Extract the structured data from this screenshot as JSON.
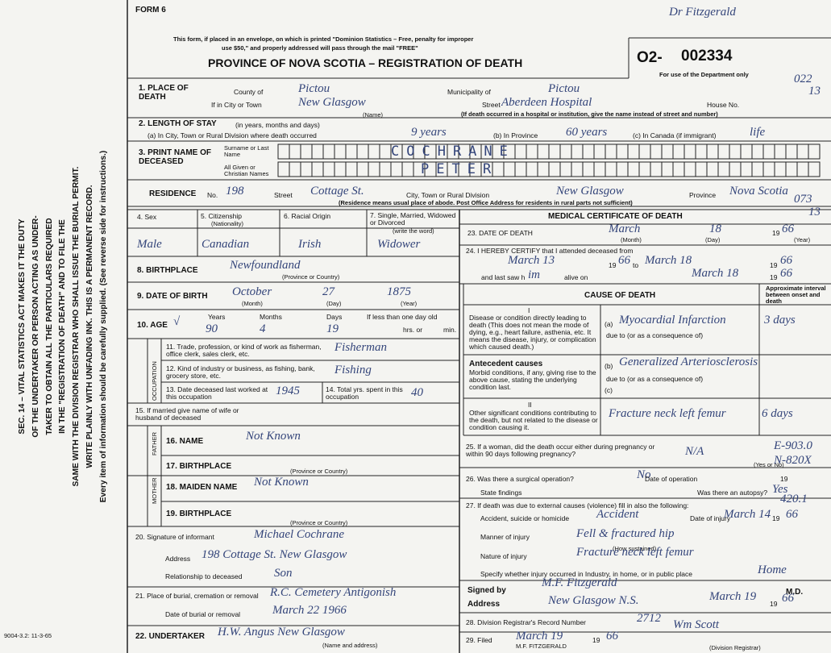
{
  "form_label": "FORM 6",
  "header": {
    "notice": [
      "This form, if placed in an envelope, on which is printed \"Dominion Statistics – Free, penalty for improper",
      "use $50,\" and properly addressed will pass through the mail \"FREE\""
    ],
    "title": "PROVINCE OF NOVA SCOTIA – REGISTRATION OF DEATH",
    "registration_prefix": "O2-",
    "registration_number": "002334",
    "department_use": "For use of the Department only",
    "annotation": "Dr Fitzgerald",
    "codes": [
      "022",
      "13",
      "073",
      "13"
    ]
  },
  "side_note": [
    "SEC. 14 – VITAL STATISTICS ACT MAKES IT THE DUTY",
    "OF THE UNDERTAKER OR PERSON ACTING AS UNDER-",
    "TAKER TO OBTAIN ALL THE PARTICULARS REQUIRED",
    "IN THE \"REGISTRATION OF DEATH\" AND TO FILE THE",
    "SAME WITH THE DIVISION REGISTRAR WHO SHALL ISSUE THE BURIAL PERMIT.",
    "WRITE PLAINLY WITH UNFADING INK. THIS IS A PERMANENT RECORD.",
    "Every item of information should be carefully supplied. (See reverse side for instructions.)"
  ],
  "footer_code": "9004-3.2: 11-3-65",
  "place_of_death": {
    "label": "1. PLACE OF DEATH",
    "county_label": "County of",
    "county": "Pictou",
    "municipality_label": "Municipality of",
    "municipality": "Pictou",
    "city_label": "If in City or Town",
    "city": "New Glasgow",
    "name_caption": "(Name)",
    "street_label": "Street",
    "street": "Aberdeen Hospital",
    "house_label": "House No.",
    "note": "(If death occurred in a hospital or institution, give the name instead of street and number)"
  },
  "length_of_stay": {
    "label": "2. LENGTH OF STAY",
    "label_note": "(in years, months and days)",
    "a_label": "(a) In City, Town or Rural Division where death occurred",
    "a": "9 years",
    "b_label": "(b) In Province",
    "b": "60 years",
    "c_label": "(c) In Canada (if immigrant)",
    "c": "life"
  },
  "name": {
    "label": "3. PRINT NAME OF DECEASED",
    "surname_label": "Surname or Last Name",
    "surname": "COCHRANE",
    "given_label": "All Given or Christian Names",
    "given": "PETER"
  },
  "residence": {
    "label": "RESIDENCE",
    "no_label": "No.",
    "no": "198",
    "street_label": "Street",
    "street": "Cottage St.",
    "city_label": "City, Town or Rural Division",
    "city": "New Glasgow",
    "province_label": "Province",
    "province": "Nova Scotia",
    "note": "(Residence means usual place of abode. Post Office Address for residents in rural parts not sufficient)"
  },
  "personal": {
    "sex_label": "4. Sex",
    "sex": "Male",
    "citizenship_label": "5. Citizenship",
    "citizenship_note": "(Nationality)",
    "citizenship": "Canadian",
    "racial_label": "6. Racial Origin",
    "racial": "Irish",
    "status_label": "7. Single, Married, Widowed or Divorced",
    "status_note": "(write the word)",
    "status": "Widower"
  },
  "birthplace": {
    "label": "8. BIRTHPLACE",
    "value": "Newfoundland",
    "caption": "(Province or Country)"
  },
  "birth_date": {
    "label": "9. DATE OF BIRTH",
    "month": "October",
    "day": "27",
    "year": "1875",
    "month_caption": "(Month)",
    "day_caption": "(Day)",
    "year_caption": "(Year)"
  },
  "age": {
    "label": "10. AGE",
    "check": "√",
    "years_label": "Years",
    "years": "90",
    "months_label": "Months",
    "months": "4",
    "days_label": "Days",
    "days": "19",
    "infant_label": "If less than one day old",
    "hrs_label": "hrs. or",
    "min_label": "min."
  },
  "occupation": {
    "section_label": "OCCUPATION",
    "trade_label": "11. Trade, profession, or kind of work as fisherman, office clerk, sales clerk, etc.",
    "trade": "Fisherman",
    "industry_label": "12. Kind of industry or business, as fishing, bank, grocery store, etc.",
    "industry": "Fishing",
    "last_worked_label": "13. Date deceased last worked at this occupation",
    "last_worked": "1945",
    "total_years_label": "14. Total yrs. spent in this occupation",
    "total_years": "40"
  },
  "spouse": {
    "label": "15. If married give name of wife or husband of deceased"
  },
  "father": {
    "section_label": "FATHER",
    "name_label": "16. NAME",
    "name": "Not Known",
    "birthplace_label": "17. BIRTHPLACE",
    "birthplace_caption": "(Province or Country)"
  },
  "mother": {
    "section_label": "MOTHER",
    "maiden_label": "18. MAIDEN NAME",
    "maiden": "Not Known",
    "birthplace_label": "19. BIRTHPLACE",
    "birthplace_caption": "(Province or Country)"
  },
  "informant": {
    "signature_label": "20. Signature of informant",
    "signature": "Michael Cochrane",
    "address_label": "Address",
    "address": "198 Cottage St. New Glasgow",
    "relationship_label": "Relationship to deceased",
    "relationship": "Son"
  },
  "burial": {
    "place_label": "21. Place of burial, cremation or removal",
    "place": "R.C. Cemetery Antigonish",
    "date_label": "Date of burial or removal",
    "date": "March 22 1966"
  },
  "undertaker": {
    "label": "22. UNDERTAKER",
    "value": "H.W. Angus New Glasgow",
    "caption": "(Name and address)"
  },
  "medical": {
    "title": "MEDICAL CERTIFICATE OF DEATH",
    "death_date_label": "23. DATE OF DEATH",
    "death_month": "March",
    "death_day": "18",
    "century": "19",
    "death_year": "66",
    "month_caption": "(Month)",
    "day_caption": "(Day)",
    "year_caption": "(Year)",
    "certify_label": "24. I HEREBY CERTIFY that I attended deceased from",
    "from": "March 13",
    "from_year": "66",
    "to_label": "to",
    "to": "March 18",
    "to_year": "66",
    "last_seen_label": "and last saw h",
    "last_seen_suffix": "im",
    "alive_label": "alive on",
    "last_seen": "March 18",
    "last_seen_year": "66"
  },
  "cause": {
    "title": "CAUSE OF DEATH",
    "interval_label": "Approximate interval between onset and death",
    "part1": "I",
    "direct_label": "Disease or condition directly leading to death (This does not mean the mode of dying, e.g., heart failure, asthenia, etc. It means the disease, injury, or complication which caused death.)",
    "a_label": "(a)",
    "a": "Myocardial Infarction",
    "a_interval": "3 days",
    "due_to": "due to (or as a consequence of)",
    "antecedent_title": "Antecedent causes",
    "antecedent_label": "Morbid conditions, if any, giving rise to the above cause, stating the underlying condition last.",
    "b_label": "(b)",
    "b": "Generalized Arteriosclerosis",
    "c_label": "(c)",
    "part2": "II",
    "other_label": "Other significant conditions contributing to the death, but not related to the disease or condition causing it.",
    "other": "Fracture neck left femur",
    "other_interval": "6 days"
  },
  "pregnancy": {
    "label": "25. If a woman, did the death occur either during pregnancy or within 90 days following pregnancy?",
    "value": "N/A",
    "caption": "(Yes or No)",
    "codes": [
      "E-903.0",
      "N-820X"
    ]
  },
  "surgery": {
    "label": "26. Was there a surgical operation?",
    "value": "No",
    "date_label": "Date of operation",
    "findings_label": "State findings",
    "autopsy_label": "Was there an autopsy?",
    "autopsy": "Yes"
  },
  "external": {
    "label": "27. If death was due to external causes (violence) fill in also the following:",
    "code": "420.1",
    "kind_label": "Accident, suicide or homicide",
    "kind": "Accident",
    "date_label": "Date of injury",
    "date": "March 14",
    "date_year": "66",
    "manner_label": "Manner of injury",
    "manner": "Fell & fractured hip",
    "manner_caption": "(How sustained)",
    "nature_label": "Nature of injury",
    "nature": "Fracture neck left femur",
    "place_label": "Specify whether injury occurred in Industry, in home, or in public place",
    "place": "Home"
  },
  "signature": {
    "signed_label": "Signed by",
    "signed": "M.F. Fitzgerald",
    "md": "M.D.",
    "address_label": "Address",
    "address": "New Glasgow N.S.",
    "date": "March 19",
    "year": "66"
  },
  "registrar": {
    "record_label": "28. Division Registrar's Record Number",
    "record": "2712",
    "filed_label": "29. Filed",
    "filed": "March 19",
    "filed_year": "66",
    "registrar": "Wm Scott",
    "registrar_caption": "(Division Registrar)",
    "stamp": "M.F. FITZGERALD"
  }
}
